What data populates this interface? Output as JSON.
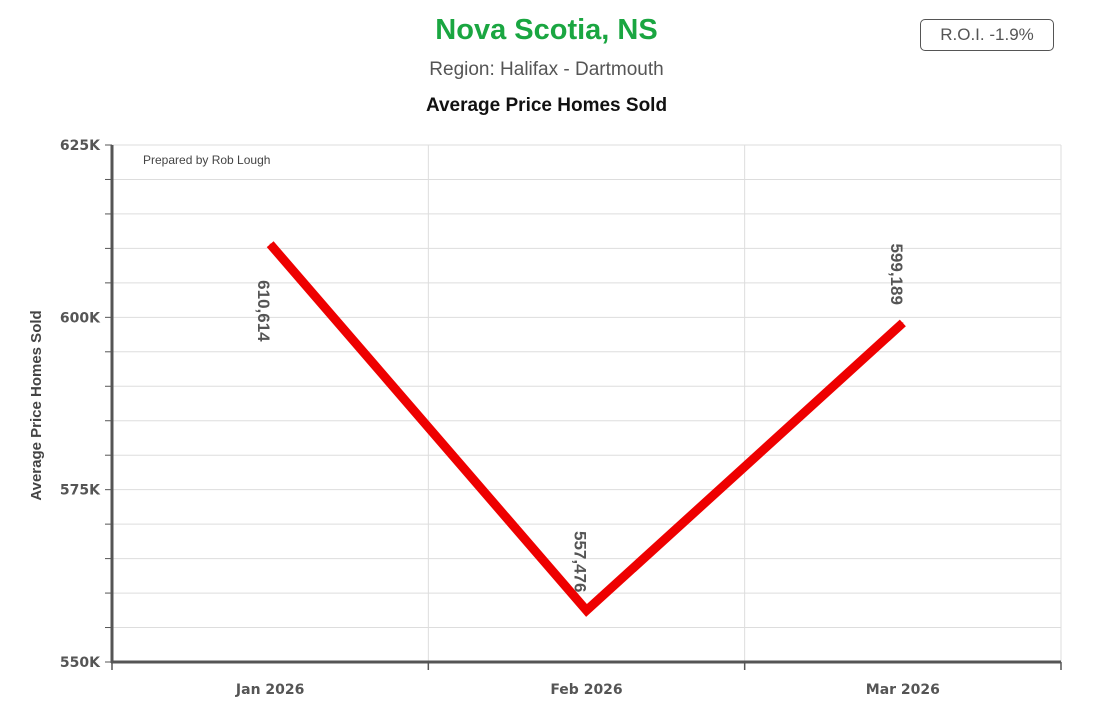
{
  "header": {
    "title": "Nova Scotia, NS",
    "subtitle": "Region: Halifax - Dartmouth",
    "chart_title": "Average Price Homes Sold",
    "roi_label": "R.O.I. -1.9%"
  },
  "credit": "Prepared by Rob Lough",
  "colors": {
    "title": "#1aa641",
    "line": "#ee0000",
    "grid": "#dddddd",
    "axis": "#555555"
  },
  "chart_data": {
    "type": "line",
    "title": "Average Price Homes Sold",
    "xlabel": "",
    "ylabel": "Average Price Homes Sold",
    "categories": [
      "Jan 2026",
      "Feb 2026",
      "Mar 2026"
    ],
    "series": [
      {
        "values": [
          610614,
          557476,
          599189
        ]
      }
    ],
    "data_labels": [
      "610,614",
      "557,476",
      "599,189"
    ],
    "ylim": [
      550000,
      625000
    ],
    "yticks": [
      550000,
      575000,
      600000,
      625000
    ],
    "ytick_labels": [
      "550K",
      "575K",
      "600K",
      "625K"
    ],
    "grid": true
  }
}
